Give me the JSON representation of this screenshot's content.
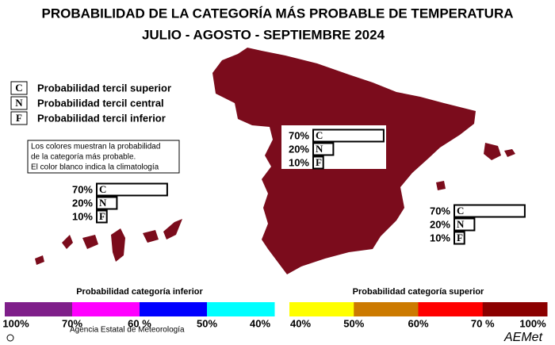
{
  "title": "PROBABILIDAD DE LA CATEGORÍA MÁS PROBABLE DE TEMPERATURA",
  "subtitle": "JULIO - AGOSTO - SEPTIEMBRE 2024",
  "map_color": "#7b0c1c",
  "key": [
    {
      "letter": "C",
      "text": "Probabilidad  tercil superior"
    },
    {
      "letter": "N",
      "text": "Probabilidad  tercil central"
    },
    {
      "letter": "F",
      "text": "Probabilidad  tercil inferior"
    }
  ],
  "note": [
    "Los colores muestran la probabilidad",
    "de la categoría más probable.",
    "El color blanco indica la climatología"
  ],
  "regions": [
    {
      "letters": [
        "C",
        "N",
        "F"
      ],
      "values": [
        70,
        20,
        10
      ],
      "value_labels": [
        "70%",
        "20%",
        "10%"
      ]
    },
    {
      "letters": [
        "C",
        "N",
        "F"
      ],
      "values": [
        70,
        20,
        10
      ],
      "value_labels": [
        "70%",
        "20%",
        "10%"
      ]
    },
    {
      "letters": [
        "C",
        "N",
        "F"
      ],
      "values": [
        70,
        20,
        10
      ],
      "value_labels": [
        "70%",
        "20%",
        "10%"
      ]
    }
  ],
  "colorbars": [
    {
      "title": "Probabilidad categoría inferior",
      "colors": [
        "#7f1f8a",
        "#ff00ff",
        "#0000ff",
        "#00ffff"
      ],
      "labels": [
        "100%",
        "70%",
        "60 %",
        "50%",
        "40%"
      ]
    },
    {
      "title": "Probabilidad categoría superior",
      "colors": [
        "#ffff00",
        "#cc7a00",
        "#ff0000",
        "#8b0000"
      ],
      "labels": [
        "40%",
        "50%",
        "60%",
        "70 %",
        "100%"
      ]
    }
  ],
  "footer": "Agencia Estatal de Meteorología",
  "logo": "AEMet"
}
